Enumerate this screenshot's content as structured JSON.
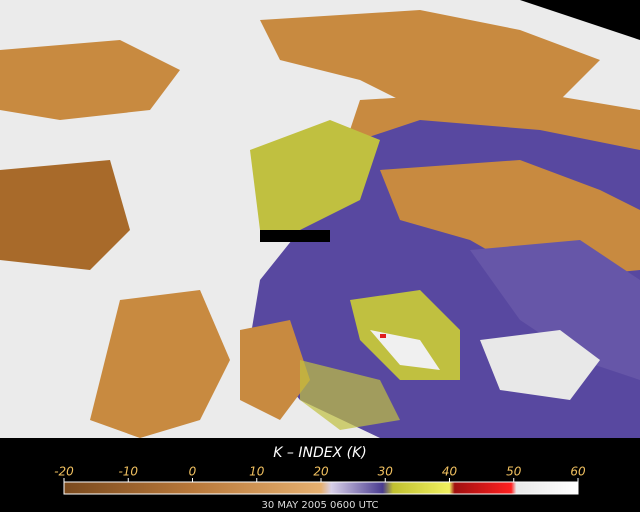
{
  "colorbar": {
    "title": "K – INDEX (K)",
    "ticks": [
      -20,
      -10,
      0,
      10,
      20,
      30,
      40,
      50,
      60
    ],
    "lim": [
      -20,
      60
    ]
  },
  "timestamp": "30 MAY 2005 0600 UTC"
}
